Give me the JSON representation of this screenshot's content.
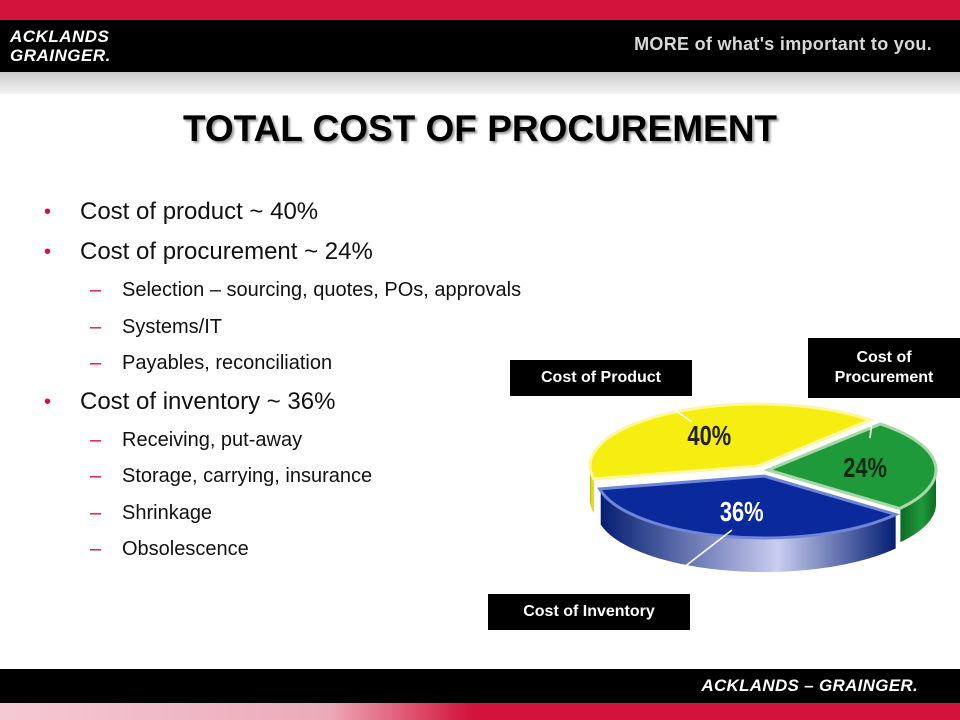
{
  "header": {
    "logo_line1": "ACKLANDS",
    "logo_line2": "GRAINGER.",
    "tagline": "MORE of what's important to you."
  },
  "title": "TOTAL COST OF PROCUREMENT",
  "bullets": [
    {
      "text": "Cost of product ~ 40%",
      "subs": []
    },
    {
      "text": "Cost of procurement ~ 24%",
      "subs": [
        "Selection – sourcing, quotes, POs, approvals",
        "Systems/IT",
        "Payables, reconciliation"
      ]
    },
    {
      "text": "Cost of inventory ~ 36%",
      "subs": [
        "Receiving, put-away",
        "Storage, carrying, insurance",
        "Shrinkage",
        "Obsolescence"
      ]
    }
  ],
  "bullet_symbol": "•",
  "dash_symbol": "–",
  "colors": {
    "accent": "#d2143a",
    "product": "#f5ee10",
    "procurement": "#1f9a3a",
    "inventory": "#0a2a9c"
  },
  "chart_data": {
    "type": "pie",
    "categories": [
      "Cost of Product",
      "Cost of Procurement",
      "Cost of Inventory"
    ],
    "values": [
      40,
      24,
      36
    ],
    "data_labels": [
      "40%",
      "24%",
      "36%"
    ],
    "title": ""
  },
  "footer": {
    "logo": "ACKLANDS – GRAINGER."
  }
}
